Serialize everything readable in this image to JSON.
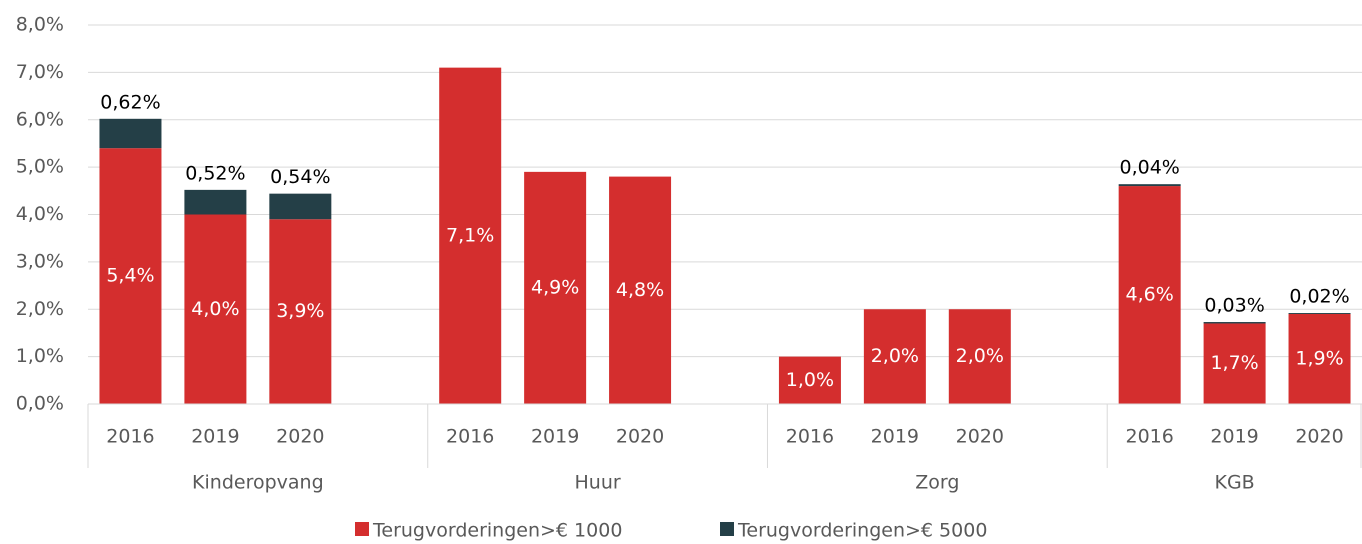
{
  "chart_data": {
    "type": "stacked_bar",
    "categories": [
      "2016",
      "2019",
      "2020",
      "2016",
      "2019",
      "2020",
      "2016",
      "2019",
      "2020",
      "2016",
      "2019",
      "2020"
    ],
    "groups": [
      "Kinderopvang",
      "Huur",
      "Zorg",
      "KGB"
    ],
    "series": [
      {
        "name": "Terugvorderingen>€ 1000",
        "color": "#d42e2e",
        "values": [
          5.4,
          4.0,
          3.9,
          7.1,
          4.9,
          4.8,
          1.0,
          2.0,
          2.0,
          4.6,
          1.7,
          1.9
        ],
        "value_labels": [
          "5,4%",
          "4,0%",
          "3,9%",
          "7,1%",
          "4,9%",
          "4,8%",
          "1,0%",
          "2,0%",
          "2,0%",
          "4,6%",
          "1,7%",
          "1,9%"
        ]
      },
      {
        "name": "Terugvorderingen>€ 5000",
        "color": "#243f47",
        "values": [
          0.62,
          0.52,
          0.54,
          null,
          null,
          null,
          null,
          null,
          null,
          0.04,
          0.03,
          0.02
        ],
        "value_labels": [
          "0,62%",
          "0,52%",
          "0,54%",
          null,
          null,
          null,
          null,
          null,
          null,
          "0,04%",
          "0,03%",
          "0,02%"
        ]
      }
    ],
    "ylim": [
      0,
      8
    ],
    "yticks": [
      {
        "value": 0,
        "label": "0,0%"
      },
      {
        "value": 1,
        "label": "1,0%"
      },
      {
        "value": 2,
        "label": "2,0%"
      },
      {
        "value": 3,
        "label": "3,0%"
      },
      {
        "value": 4,
        "label": "4,0%"
      },
      {
        "value": 5,
        "label": "5,0%"
      },
      {
        "value": 6,
        "label": "6,0%"
      },
      {
        "value": 7,
        "label": "7,0%"
      },
      {
        "value": 8,
        "label": "8,0%"
      }
    ],
    "grid": true,
    "legend": "bottom"
  }
}
